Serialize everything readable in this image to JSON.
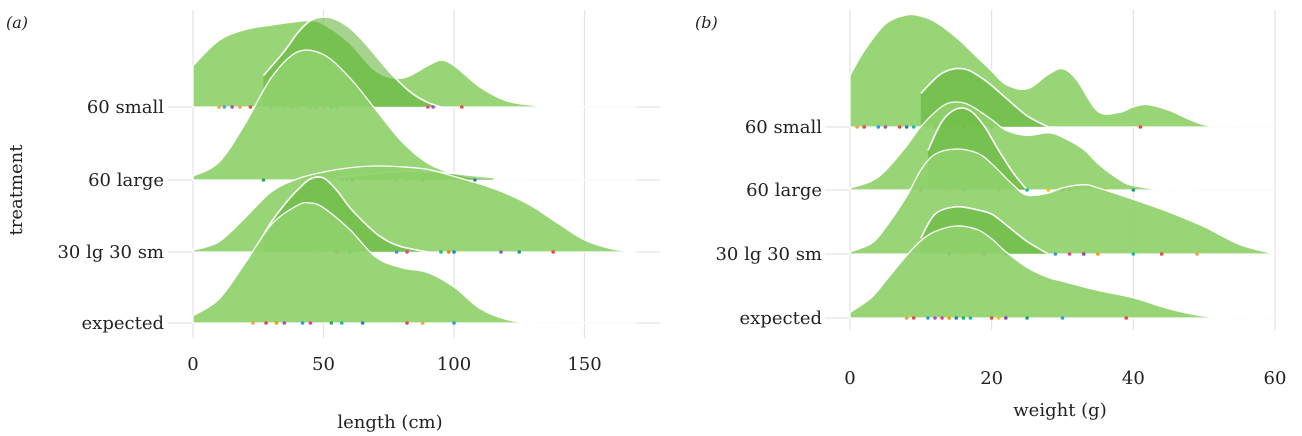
{
  "figure": {
    "panels": [
      {
        "tag": "(a)"
      },
      {
        "tag": "(b)"
      }
    ]
  },
  "chart_data": [
    {
      "type": "ridgeline",
      "panel": "(a)",
      "xlabel": "length (cm)",
      "ylabel": "treatment",
      "xlim": [
        0,
        175
      ],
      "xticks": [
        0,
        50,
        100,
        150
      ],
      "grid": true,
      "fill_color": "#8fd16b",
      "overlay_color": "#5cb031",
      "categories": [
        "60 small",
        "60 large",
        "30 lg 30 sm",
        "expected"
      ],
      "series": [
        {
          "category": "60 small",
          "density_x": [
            0,
            10,
            20,
            30,
            40,
            45,
            50,
            60,
            70,
            80,
            90,
            95,
            100,
            110,
            120,
            130,
            140,
            150,
            160,
            170
          ],
          "density_y": [
            0.46,
            0.74,
            0.86,
            0.91,
            0.95,
            0.96,
            0.92,
            0.71,
            0.4,
            0.32,
            0.46,
            0.52,
            0.46,
            0.22,
            0.07,
            0.02,
            0.005,
            0,
            0,
            0
          ],
          "points": [
            10,
            12,
            15,
            18,
            22,
            30,
            35,
            38,
            40,
            45,
            47,
            50,
            53,
            55,
            90,
            92,
            103
          ],
          "point_colors": [
            "#f1a340",
            "#4aa3df",
            "#9b59b6",
            "#f1a340",
            "#e74c3c",
            "#2ecc71",
            "#f1a340",
            "#e74c3c",
            "#e67e22",
            "#3498db",
            "#1abc9c",
            "#f39c12",
            "#2980b9",
            "#27ae60",
            "#e84393",
            "#9b59b6",
            "#e74c3c"
          ],
          "overlay_x": [
            27,
            35,
            40,
            45,
            50,
            55,
            60,
            65,
            70,
            75,
            80,
            85,
            90,
            95
          ],
          "overlay_y": [
            0.35,
            0.62,
            0.82,
            0.96,
            1.0,
            0.97,
            0.88,
            0.74,
            0.57,
            0.4,
            0.25,
            0.13,
            0.05,
            0.0
          ]
        },
        {
          "category": "60 large",
          "density_x": [
            0,
            10,
            20,
            30,
            40,
            50,
            60,
            70,
            80,
            90,
            100,
            110,
            120,
            130,
            140,
            150,
            160,
            170
          ],
          "density_y": [
            0.03,
            0.14,
            0.44,
            0.8,
            1.0,
            0.98,
            0.8,
            0.55,
            0.3,
            0.13,
            0.05,
            0.01,
            0,
            0,
            0,
            0,
            0,
            0
          ],
          "points": [
            27,
            42,
            48,
            57,
            59,
            61,
            78,
            82,
            88,
            108
          ],
          "point_colors": [
            "#27ae60",
            "#f1a340",
            "#e74c3c",
            "#2ecc71",
            "#3498db",
            "#8e44ad",
            "#1abc9c",
            "#f39c12",
            "#e84393",
            "#2980b9"
          ],
          "overlay_x": [
            55,
            65,
            75,
            85,
            95,
            105,
            115
          ],
          "overlay_y": [
            0.02,
            0.04,
            0.06,
            0.07,
            0.06,
            0.04,
            0.02
          ]
        },
        {
          "category": "30 lg 30 sm",
          "density_x": [
            0,
            10,
            20,
            30,
            40,
            50,
            60,
            70,
            80,
            90,
            100,
            110,
            120,
            130,
            140,
            150,
            160,
            170
          ],
          "density_y": [
            0.02,
            0.12,
            0.4,
            0.7,
            0.85,
            0.93,
            0.98,
            1.0,
            0.99,
            0.96,
            0.88,
            0.79,
            0.68,
            0.53,
            0.33,
            0.14,
            0.04,
            0
          ],
          "points": [
            47,
            55,
            57,
            60,
            78,
            82,
            95,
            98,
            100,
            118,
            125,
            138
          ],
          "point_colors": [
            "#f1c40f",
            "#e74c3c",
            "#f39c12",
            "#27ae60",
            "#3498db",
            "#e84393",
            "#1abc9c",
            "#e67e22",
            "#2980b9",
            "#9b59b6",
            "#16a085",
            "#e74c3c"
          ],
          "overlay_x": [
            27,
            30,
            35,
            40,
            45,
            50,
            55,
            60,
            65,
            70,
            75,
            80,
            90
          ],
          "overlay_y": [
            0.2,
            0.35,
            0.55,
            0.72,
            0.85,
            0.86,
            0.72,
            0.52,
            0.36,
            0.22,
            0.12,
            0.06,
            0
          ]
        },
        {
          "category": "expected",
          "density_x": [
            0,
            10,
            20,
            30,
            40,
            45,
            50,
            60,
            70,
            80,
            90,
            100,
            110,
            120,
            130,
            140,
            150,
            160,
            170
          ],
          "density_y": [
            0.06,
            0.2,
            0.5,
            0.82,
            0.98,
            1.0,
            0.96,
            0.78,
            0.55,
            0.46,
            0.42,
            0.3,
            0.12,
            0.03,
            0,
            0,
            0,
            0,
            0
          ],
          "points": [
            23,
            28,
            32,
            35,
            42,
            45,
            53,
            57,
            65,
            82,
            88,
            100
          ],
          "point_colors": [
            "#f1a340",
            "#e74c3c",
            "#f39c12",
            "#9b59b6",
            "#3498db",
            "#e84393",
            "#27ae60",
            "#1abc9c",
            "#2980b9",
            "#e74c3c",
            "#f1a340",
            "#3498db"
          ]
        }
      ]
    },
    {
      "type": "ridgeline",
      "panel": "(b)",
      "xlabel": "weight (g)",
      "ylabel": "",
      "xlim": [
        0,
        62
      ],
      "xticks": [
        0,
        20,
        40,
        60
      ],
      "grid": true,
      "fill_color": "#8fd16b",
      "overlay_color": "#5cb031",
      "categories": [
        "60 small",
        "60 large",
        "30 lg 30 sm",
        "expected"
      ],
      "series": [
        {
          "category": "60 small",
          "density_x": [
            0,
            2,
            5,
            8,
            10,
            12,
            15,
            18,
            20,
            22,
            25,
            28,
            30,
            32,
            35,
            38,
            40,
            42,
            45,
            50,
            55,
            60
          ],
          "density_y": [
            0.46,
            0.68,
            0.92,
            1.0,
            0.99,
            0.94,
            0.8,
            0.62,
            0.5,
            0.38,
            0.34,
            0.47,
            0.52,
            0.42,
            0.14,
            0.13,
            0.18,
            0.2,
            0.15,
            0.02,
            0,
            0
          ],
          "points": [
            1,
            2,
            4,
            5,
            7,
            8,
            9,
            11,
            12,
            14,
            16,
            19,
            20,
            41
          ],
          "point_colors": [
            "#f1a340",
            "#e74c3c",
            "#3498db",
            "#9b59b6",
            "#e74c3c",
            "#2980b9",
            "#1abc9c",
            "#f39c12",
            "#27ae60",
            "#e84393",
            "#8e44ad",
            "#2ecc71",
            "#3498db",
            "#e74c3c"
          ],
          "overlay_x": [
            10,
            13,
            16,
            19,
            22,
            25,
            28
          ],
          "overlay_y": [
            0.3,
            0.48,
            0.52,
            0.42,
            0.26,
            0.1,
            0
          ]
        },
        {
          "category": "60 large",
          "density_x": [
            0,
            3,
            5,
            8,
            10,
            13,
            15,
            17,
            20,
            22,
            25,
            28,
            30,
            33,
            35,
            38,
            40,
            45,
            50,
            55,
            60
          ],
          "density_y": [
            0.02,
            0.1,
            0.22,
            0.5,
            0.72,
            0.95,
            1.0,
            0.96,
            0.8,
            0.68,
            0.62,
            0.65,
            0.6,
            0.46,
            0.3,
            0.12,
            0.05,
            0,
            0,
            0,
            0
          ],
          "points": [
            10,
            14,
            16,
            21,
            25,
            28,
            30,
            31,
            36,
            40
          ],
          "point_colors": [
            "#e74c3c",
            "#f39c12",
            "#2980b9",
            "#e84393",
            "#1abc9c",
            "#f1c40f",
            "#8e44ad",
            "#e74c3c",
            "#f1a340",
            "#16a085"
          ],
          "overlay_x": [
            11,
            13,
            15,
            17,
            19,
            21,
            23,
            25
          ],
          "overlay_y": [
            0.45,
            0.78,
            0.92,
            0.9,
            0.72,
            0.45,
            0.2,
            0
          ]
        },
        {
          "category": "30 lg 30 sm",
          "density_x": [
            0,
            3,
            5,
            8,
            10,
            12,
            15,
            18,
            20,
            23,
            25,
            28,
            30,
            33,
            35,
            40,
            45,
            50,
            55,
            60
          ],
          "density_y": [
            0.02,
            0.1,
            0.25,
            0.55,
            0.8,
            0.95,
            1.0,
            0.96,
            0.86,
            0.66,
            0.56,
            0.58,
            0.63,
            0.66,
            0.63,
            0.52,
            0.4,
            0.26,
            0.09,
            0
          ],
          "points": [
            14,
            16,
            19,
            22,
            29,
            31,
            33,
            35,
            40,
            44,
            49
          ],
          "point_colors": [
            "#2980b9",
            "#f1c40f",
            "#e74c3c",
            "#27ae60",
            "#3498db",
            "#e84393",
            "#8e44ad",
            "#f39c12",
            "#1abc9c",
            "#e74c3c",
            "#f1a340"
          ],
          "overlay_x": [
            10,
            12,
            15,
            18,
            20,
            22,
            25,
            28
          ],
          "overlay_y": [
            0.15,
            0.38,
            0.45,
            0.42,
            0.38,
            0.28,
            0.12,
            0
          ]
        },
        {
          "category": "expected",
          "density_x": [
            0,
            3,
            5,
            8,
            10,
            12,
            15,
            18,
            20,
            22,
            25,
            28,
            30,
            35,
            40,
            45,
            50,
            55,
            60
          ],
          "density_y": [
            0.06,
            0.22,
            0.4,
            0.68,
            0.84,
            0.94,
            1.0,
            0.96,
            0.86,
            0.72,
            0.55,
            0.44,
            0.4,
            0.3,
            0.22,
            0.1,
            0.02,
            0,
            0
          ],
          "points": [
            8,
            9,
            11,
            12,
            13,
            14,
            15,
            16,
            17,
            20,
            21,
            22,
            25,
            30,
            39
          ],
          "point_colors": [
            "#f1a340",
            "#e74c3c",
            "#3498db",
            "#9b59b6",
            "#e84393",
            "#f39c12",
            "#2980b9",
            "#27ae60",
            "#1abc9c",
            "#e74c3c",
            "#f1c40f",
            "#8e44ad",
            "#16a085",
            "#3498db",
            "#e74c3c"
          ]
        }
      ]
    }
  ]
}
